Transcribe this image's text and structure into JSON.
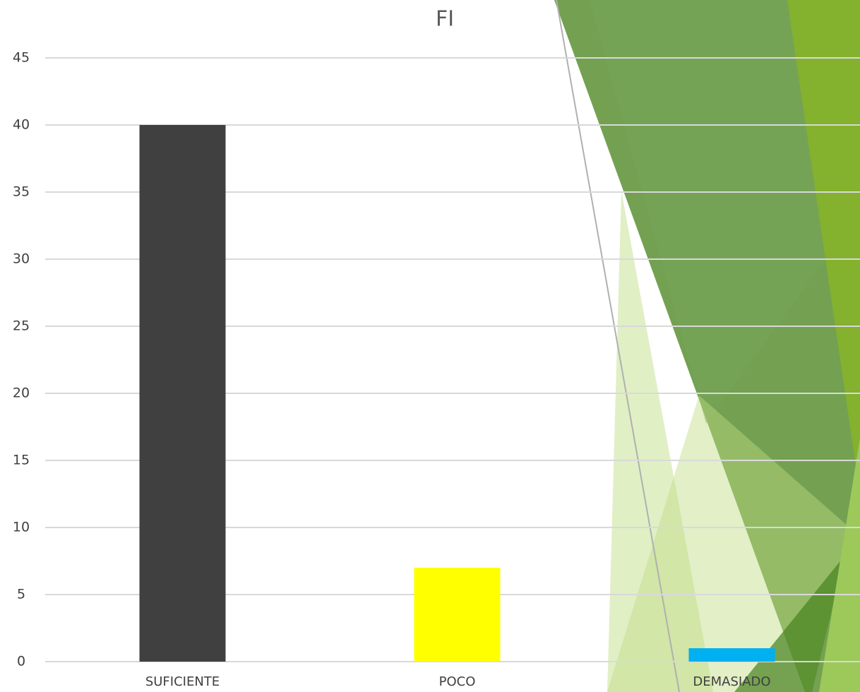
{
  "chart_data": {
    "type": "bar",
    "title": "FI",
    "categories": [
      "SUFICIENTE",
      "POCO",
      "DEMASIADO"
    ],
    "values": [
      40,
      7,
      1
    ],
    "colors": [
      "#404040",
      "#ffff00",
      "#00b0f0"
    ],
    "ylim": [
      0,
      45
    ],
    "yticks": [
      0,
      5,
      10,
      15,
      20,
      25,
      30,
      35,
      40,
      45
    ],
    "grid": true
  }
}
